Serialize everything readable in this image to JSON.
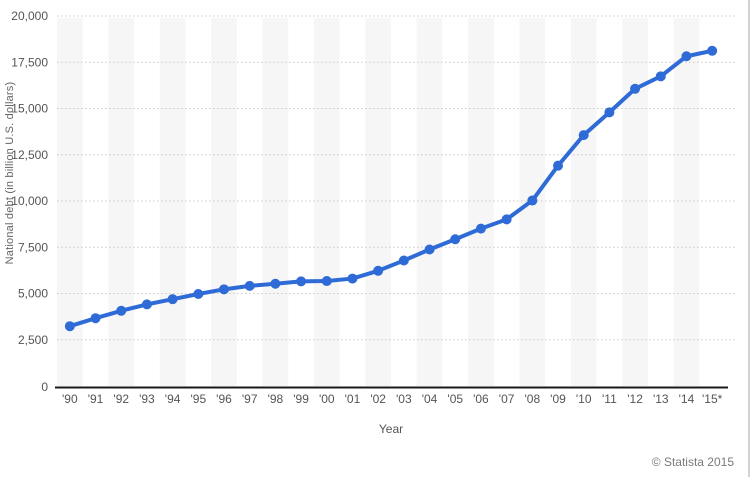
{
  "footer": {
    "copyright": "© Statista 2015"
  },
  "chart_data": {
    "type": "line",
    "title": "",
    "xlabel": "Year",
    "ylabel": "National debt (in billion U.S. dollars)",
    "categories": [
      "'90",
      "'91",
      "'92",
      "'93",
      "'94",
      "'95",
      "'96",
      "'97",
      "'98",
      "'99",
      "'00",
      "'01",
      "'02",
      "'03",
      "'04",
      "'05",
      "'06",
      "'07",
      "'08",
      "'09",
      "'10",
      "'11",
      "'12",
      "'13",
      "'14",
      "'15*"
    ],
    "series": [
      {
        "name": "National debt (in billion U.S. dollars)",
        "values": [
          3233,
          3665,
          4065,
          4411,
          4693,
          4974,
          5225,
          5413,
          5526,
          5656,
          5674,
          5807,
          6228,
          6783,
          7379,
          7933,
          8507,
          9008,
          10025,
          11910,
          13562,
          14790,
          16066,
          16738,
          17824,
          18120
        ]
      }
    ],
    "ylim": [
      0,
      20000
    ],
    "yticks": [
      0,
      2500,
      5000,
      7500,
      10000,
      12500,
      15000,
      17500,
      20000
    ],
    "ytick_labels": [
      "0",
      "2,500",
      "5,000",
      "7,500",
      "10,000",
      "12,500",
      "15,000",
      "17,500",
      "20,000"
    ],
    "grid": "horizontal-dotted",
    "legend": "none",
    "marker": "circle",
    "colors": {
      "line": "#2e6bd6",
      "marker": "#2e6bd6",
      "band": "#f6f6f6",
      "gridline": "#c9c9c9",
      "axis": "#1a1a1a",
      "tick_text": "#555555",
      "background": "#ffffff"
    }
  }
}
